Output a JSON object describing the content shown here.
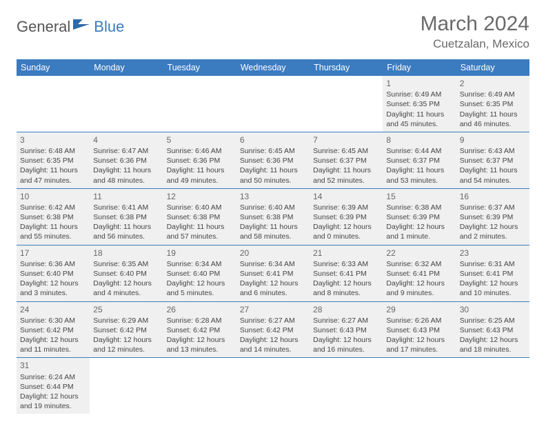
{
  "brand": {
    "general": "General",
    "blue": "Blue"
  },
  "title": "March 2024",
  "location": "Cuetzalan, Mexico",
  "colors": {
    "header_bg": "#3b7bbf",
    "header_fg": "#ffffff",
    "cell_bg": "#f0f0f0",
    "cell_border": "#3b7bbf",
    "text": "#444444",
    "title_color": "#6a6a6a",
    "logo_general": "#555555",
    "logo_blue": "#3b7bbf"
  },
  "dow": [
    "Sunday",
    "Monday",
    "Tuesday",
    "Wednesday",
    "Thursday",
    "Friday",
    "Saturday"
  ],
  "weeks": [
    [
      null,
      null,
      null,
      null,
      null,
      {
        "d": "1",
        "sr": "Sunrise: 6:49 AM",
        "ss": "Sunset: 6:35 PM",
        "dl1": "Daylight: 11 hours",
        "dl2": "and 45 minutes."
      },
      {
        "d": "2",
        "sr": "Sunrise: 6:49 AM",
        "ss": "Sunset: 6:35 PM",
        "dl1": "Daylight: 11 hours",
        "dl2": "and 46 minutes."
      }
    ],
    [
      {
        "d": "3",
        "sr": "Sunrise: 6:48 AM",
        "ss": "Sunset: 6:35 PM",
        "dl1": "Daylight: 11 hours",
        "dl2": "and 47 minutes."
      },
      {
        "d": "4",
        "sr": "Sunrise: 6:47 AM",
        "ss": "Sunset: 6:36 PM",
        "dl1": "Daylight: 11 hours",
        "dl2": "and 48 minutes."
      },
      {
        "d": "5",
        "sr": "Sunrise: 6:46 AM",
        "ss": "Sunset: 6:36 PM",
        "dl1": "Daylight: 11 hours",
        "dl2": "and 49 minutes."
      },
      {
        "d": "6",
        "sr": "Sunrise: 6:45 AM",
        "ss": "Sunset: 6:36 PM",
        "dl1": "Daylight: 11 hours",
        "dl2": "and 50 minutes."
      },
      {
        "d": "7",
        "sr": "Sunrise: 6:45 AM",
        "ss": "Sunset: 6:37 PM",
        "dl1": "Daylight: 11 hours",
        "dl2": "and 52 minutes."
      },
      {
        "d": "8",
        "sr": "Sunrise: 6:44 AM",
        "ss": "Sunset: 6:37 PM",
        "dl1": "Daylight: 11 hours",
        "dl2": "and 53 minutes."
      },
      {
        "d": "9",
        "sr": "Sunrise: 6:43 AM",
        "ss": "Sunset: 6:37 PM",
        "dl1": "Daylight: 11 hours",
        "dl2": "and 54 minutes."
      }
    ],
    [
      {
        "d": "10",
        "sr": "Sunrise: 6:42 AM",
        "ss": "Sunset: 6:38 PM",
        "dl1": "Daylight: 11 hours",
        "dl2": "and 55 minutes."
      },
      {
        "d": "11",
        "sr": "Sunrise: 6:41 AM",
        "ss": "Sunset: 6:38 PM",
        "dl1": "Daylight: 11 hours",
        "dl2": "and 56 minutes."
      },
      {
        "d": "12",
        "sr": "Sunrise: 6:40 AM",
        "ss": "Sunset: 6:38 PM",
        "dl1": "Daylight: 11 hours",
        "dl2": "and 57 minutes."
      },
      {
        "d": "13",
        "sr": "Sunrise: 6:40 AM",
        "ss": "Sunset: 6:38 PM",
        "dl1": "Daylight: 11 hours",
        "dl2": "and 58 minutes."
      },
      {
        "d": "14",
        "sr": "Sunrise: 6:39 AM",
        "ss": "Sunset: 6:39 PM",
        "dl1": "Daylight: 12 hours",
        "dl2": "and 0 minutes."
      },
      {
        "d": "15",
        "sr": "Sunrise: 6:38 AM",
        "ss": "Sunset: 6:39 PM",
        "dl1": "Daylight: 12 hours",
        "dl2": "and 1 minute."
      },
      {
        "d": "16",
        "sr": "Sunrise: 6:37 AM",
        "ss": "Sunset: 6:39 PM",
        "dl1": "Daylight: 12 hours",
        "dl2": "and 2 minutes."
      }
    ],
    [
      {
        "d": "17",
        "sr": "Sunrise: 6:36 AM",
        "ss": "Sunset: 6:40 PM",
        "dl1": "Daylight: 12 hours",
        "dl2": "and 3 minutes."
      },
      {
        "d": "18",
        "sr": "Sunrise: 6:35 AM",
        "ss": "Sunset: 6:40 PM",
        "dl1": "Daylight: 12 hours",
        "dl2": "and 4 minutes."
      },
      {
        "d": "19",
        "sr": "Sunrise: 6:34 AM",
        "ss": "Sunset: 6:40 PM",
        "dl1": "Daylight: 12 hours",
        "dl2": "and 5 minutes."
      },
      {
        "d": "20",
        "sr": "Sunrise: 6:34 AM",
        "ss": "Sunset: 6:41 PM",
        "dl1": "Daylight: 12 hours",
        "dl2": "and 6 minutes."
      },
      {
        "d": "21",
        "sr": "Sunrise: 6:33 AM",
        "ss": "Sunset: 6:41 PM",
        "dl1": "Daylight: 12 hours",
        "dl2": "and 8 minutes."
      },
      {
        "d": "22",
        "sr": "Sunrise: 6:32 AM",
        "ss": "Sunset: 6:41 PM",
        "dl1": "Daylight: 12 hours",
        "dl2": "and 9 minutes."
      },
      {
        "d": "23",
        "sr": "Sunrise: 6:31 AM",
        "ss": "Sunset: 6:41 PM",
        "dl1": "Daylight: 12 hours",
        "dl2": "and 10 minutes."
      }
    ],
    [
      {
        "d": "24",
        "sr": "Sunrise: 6:30 AM",
        "ss": "Sunset: 6:42 PM",
        "dl1": "Daylight: 12 hours",
        "dl2": "and 11 minutes."
      },
      {
        "d": "25",
        "sr": "Sunrise: 6:29 AM",
        "ss": "Sunset: 6:42 PM",
        "dl1": "Daylight: 12 hours",
        "dl2": "and 12 minutes."
      },
      {
        "d": "26",
        "sr": "Sunrise: 6:28 AM",
        "ss": "Sunset: 6:42 PM",
        "dl1": "Daylight: 12 hours",
        "dl2": "and 13 minutes."
      },
      {
        "d": "27",
        "sr": "Sunrise: 6:27 AM",
        "ss": "Sunset: 6:42 PM",
        "dl1": "Daylight: 12 hours",
        "dl2": "and 14 minutes."
      },
      {
        "d": "28",
        "sr": "Sunrise: 6:27 AM",
        "ss": "Sunset: 6:43 PM",
        "dl1": "Daylight: 12 hours",
        "dl2": "and 16 minutes."
      },
      {
        "d": "29",
        "sr": "Sunrise: 6:26 AM",
        "ss": "Sunset: 6:43 PM",
        "dl1": "Daylight: 12 hours",
        "dl2": "and 17 minutes."
      },
      {
        "d": "30",
        "sr": "Sunrise: 6:25 AM",
        "ss": "Sunset: 6:43 PM",
        "dl1": "Daylight: 12 hours",
        "dl2": "and 18 minutes."
      }
    ],
    [
      {
        "d": "31",
        "sr": "Sunrise: 6:24 AM",
        "ss": "Sunset: 6:44 PM",
        "dl1": "Daylight: 12 hours",
        "dl2": "and 19 minutes."
      },
      null,
      null,
      null,
      null,
      null,
      null
    ]
  ]
}
